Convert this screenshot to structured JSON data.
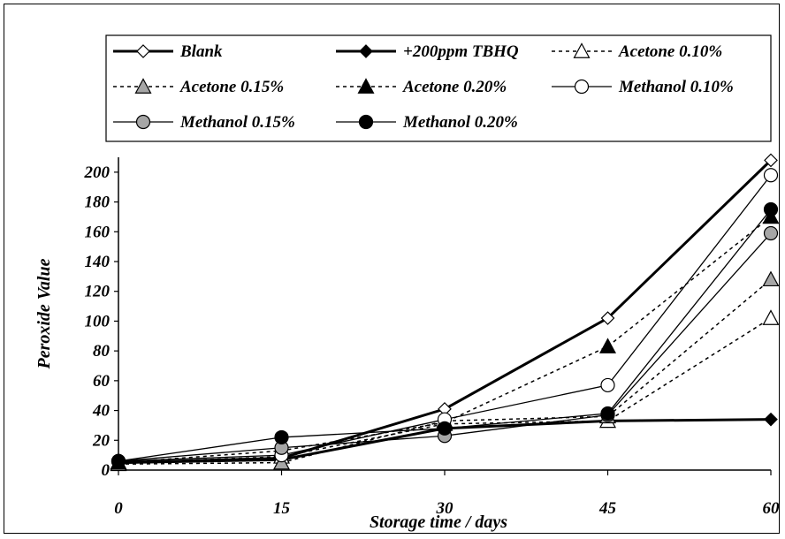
{
  "chart_data": {
    "type": "line",
    "xlabel": "Storage time / days",
    "ylabel": "Peroxide Value",
    "x": [
      0,
      15,
      30,
      45,
      60
    ],
    "xticks": [
      "0",
      "15",
      "30",
      "45",
      "60"
    ],
    "yticks": [
      "0",
      "20",
      "40",
      "60",
      "80",
      "100",
      "120",
      "140",
      "160",
      "180",
      "200"
    ],
    "xlim": [
      0,
      60
    ],
    "ylim": [
      0,
      210
    ],
    "grid": false,
    "legend_placement": "top",
    "series": [
      {
        "name": "Blank",
        "values": [
          5,
          8,
          41,
          102,
          208
        ],
        "marker": "diamond",
        "fill": "#ffffff",
        "line": "solid",
        "width": 3
      },
      {
        "name": "+200ppm TBHQ",
        "values": [
          5,
          7,
          28,
          33,
          34
        ],
        "marker": "diamond",
        "fill": "#000000",
        "line": "solid",
        "width": 3
      },
      {
        "name": "Acetone 0.10%",
        "values": [
          5,
          9,
          31,
          33,
          102
        ],
        "marker": "triangle",
        "fill": "#ffffff",
        "line": "dotted",
        "width": 1.5
      },
      {
        "name": "Acetone 0.15%",
        "values": [
          4,
          5,
          33,
          36,
          128
        ],
        "marker": "triangle",
        "fill": "#a6a6a6",
        "line": "dotted",
        "width": 1.5
      },
      {
        "name": "Acetone 0.20%",
        "values": [
          5,
          13,
          32,
          83,
          170
        ],
        "marker": "triangle",
        "fill": "#000000",
        "line": "dotted",
        "width": 1.5
      },
      {
        "name": "Methanol 0.10%",
        "values": [
          6,
          10,
          34,
          57,
          198
        ],
        "marker": "circle",
        "fill": "#ffffff",
        "line": "solid",
        "width": 1.3
      },
      {
        "name": "Methanol 0.15%",
        "values": [
          6,
          15,
          23,
          37,
          159
        ],
        "marker": "circle",
        "fill": "#a6a6a6",
        "line": "solid",
        "width": 1.3
      },
      {
        "name": "Methanol 0.20%",
        "values": [
          6,
          22,
          28,
          38,
          175
        ],
        "marker": "circle",
        "fill": "#000000",
        "line": "solid",
        "width": 1.3
      }
    ]
  }
}
